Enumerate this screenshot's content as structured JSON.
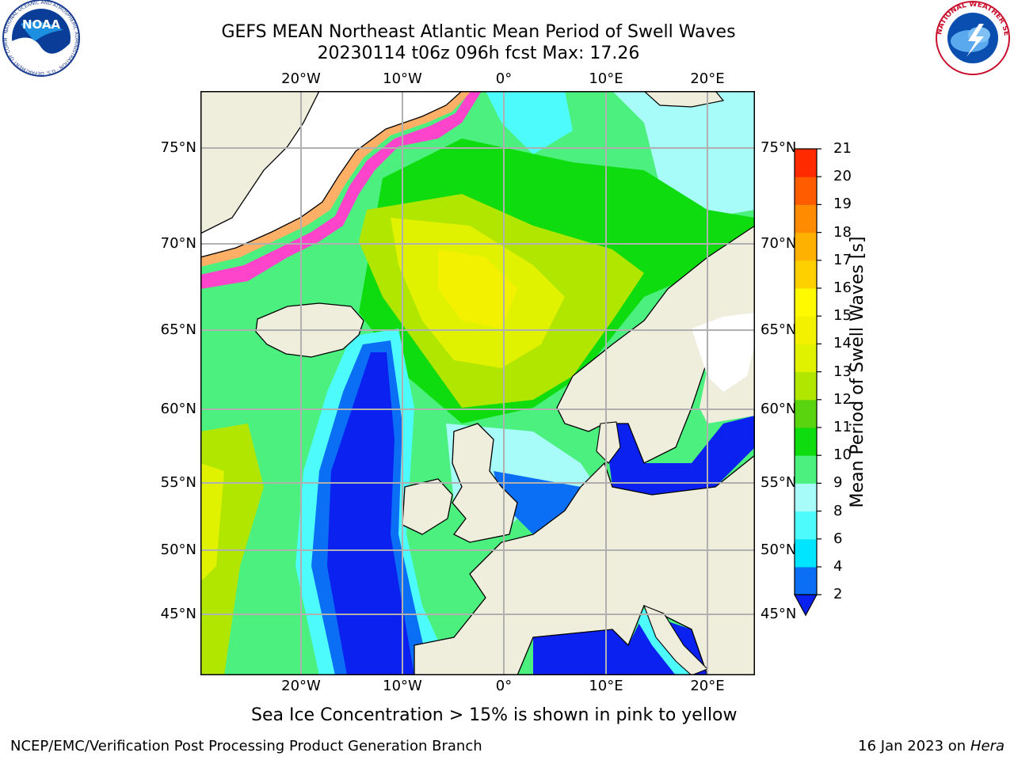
{
  "title_line1": "GEFS MEAN Northeast Atlantic Mean Period of Swell Waves",
  "title_line2": "20230114 t06z 096h fcst   Max: 17.26",
  "logos": {
    "noaa": "NOAA",
    "noaa_ring": "NATIONAL OCEANIC AND ATMOSPHERIC ADMINISTRATION · U.S. DEPARTMENT OF COMMERCE",
    "nws_ring": "NATIONAL WEATHER SERVICE"
  },
  "longitude_labels": [
    "20°W",
    "10°W",
    "0°",
    "10°E",
    "20°E"
  ],
  "latitude_labels": [
    "75°N",
    "70°N",
    "65°N",
    "60°N",
    "55°N",
    "50°N",
    "45°N"
  ],
  "colorbar": {
    "label": "Mean Period of Swell Waves [s]",
    "ticks": [
      "2",
      "4",
      "6",
      "8",
      "9",
      "10",
      "11",
      "12",
      "13",
      "14",
      "15",
      "16",
      "17",
      "18",
      "19",
      "20",
      "21"
    ],
    "colors": [
      "#0a6ff5",
      "#00e5ff",
      "#4dfbfd",
      "#a7fbf9",
      "#4cf07e",
      "#0fdc0f",
      "#5ad40f",
      "#b1e600",
      "#e0f200",
      "#f4f100",
      "#fffa00",
      "#ffd000",
      "#ffb100",
      "#ff8c00",
      "#ff5c00",
      "#ff2a00"
    ],
    "under_color": "#0a21f0"
  },
  "sea_ice_note": "Sea Ice Concentration > 15% is shown in pink to yellow",
  "footer_left": "NCEP/EMC/Verification Post Processing Product Generation Branch",
  "footer_right_date": "16 Jan 2023 on",
  "footer_right_host": "Hera",
  "colors": {
    "land": "#efeedd",
    "grid": "#b0b0b0",
    "coast": "#000000",
    "ice_pink": "#ff44cc",
    "ice_orange": "#ffb066",
    "ice_yellow": "#ffe566"
  }
}
